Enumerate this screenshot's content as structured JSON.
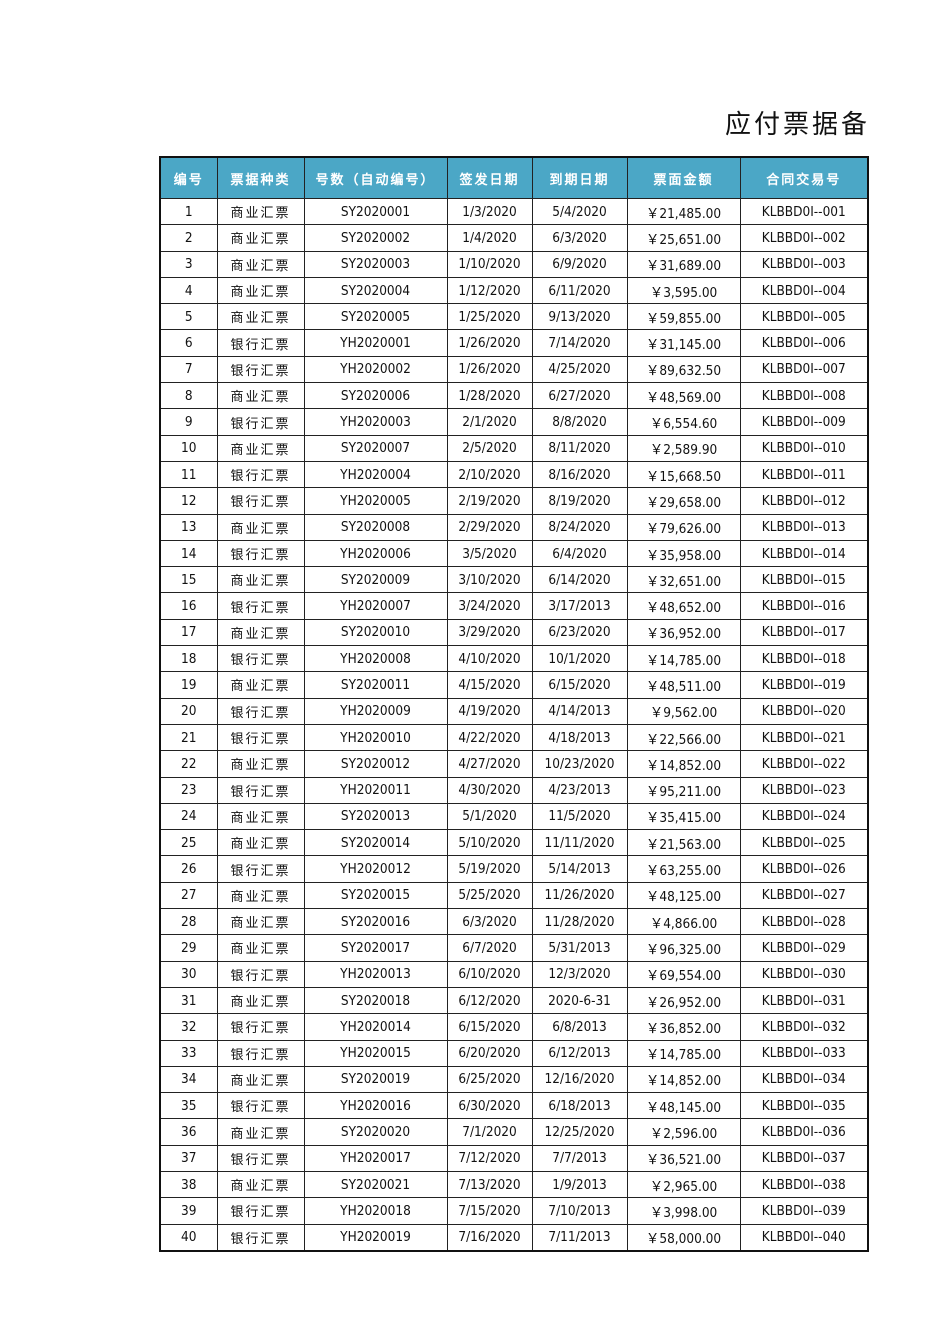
{
  "document": {
    "title": "应付票据备"
  },
  "table": {
    "header_color": "#4ba7c6",
    "columns": [
      "编号",
      "票据种类",
      "号数（自动编号）",
      "签发日期",
      "到期日期",
      "票面金额",
      "合同交易号"
    ],
    "rows": [
      [
        "1",
        "商业汇票",
        "SY2020001",
        "1/3/2020",
        "5/4/2020",
        "￥21,485.00",
        "KLBBD0I--001"
      ],
      [
        "2",
        "商业汇票",
        "SY2020002",
        "1/4/2020",
        "6/3/2020",
        "￥25,651.00",
        "KLBBD0I--002"
      ],
      [
        "3",
        "商业汇票",
        "SY2020003",
        "1/10/2020",
        "6/9/2020",
        "￥31,689.00",
        "KLBBD0I--003"
      ],
      [
        "4",
        "商业汇票",
        "SY2020004",
        "1/12/2020",
        "6/11/2020",
        "￥3,595.00",
        "KLBBD0I--004"
      ],
      [
        "5",
        "商业汇票",
        "SY2020005",
        "1/25/2020",
        "9/13/2020",
        "￥59,855.00",
        "KLBBD0I--005"
      ],
      [
        "6",
        "银行汇票",
        "YH2020001",
        "1/26/2020",
        "7/14/2020",
        "￥31,145.00",
        "KLBBD0I--006"
      ],
      [
        "7",
        "银行汇票",
        "YH2020002",
        "1/26/2020",
        "4/25/2020",
        "￥89,632.50",
        "KLBBD0I--007"
      ],
      [
        "8",
        "商业汇票",
        "SY2020006",
        "1/28/2020",
        "6/27/2020",
        "￥48,569.00",
        "KLBBD0I--008"
      ],
      [
        "9",
        "银行汇票",
        "YH2020003",
        "2/1/2020",
        "8/8/2020",
        "￥6,554.60",
        "KLBBD0I--009"
      ],
      [
        "10",
        "商业汇票",
        "SY2020007",
        "2/5/2020",
        "8/11/2020",
        "￥2,589.90",
        "KLBBD0I--010"
      ],
      [
        "11",
        "银行汇票",
        "YH2020004",
        "2/10/2020",
        "8/16/2020",
        "￥15,668.50",
        "KLBBD0I--011"
      ],
      [
        "12",
        "银行汇票",
        "YH2020005",
        "2/19/2020",
        "8/19/2020",
        "￥29,658.00",
        "KLBBD0I--012"
      ],
      [
        "13",
        "商业汇票",
        "SY2020008",
        "2/29/2020",
        "8/24/2020",
        "￥79,626.00",
        "KLBBD0I--013"
      ],
      [
        "14",
        "银行汇票",
        "YH2020006",
        "3/5/2020",
        "6/4/2020",
        "￥35,958.00",
        "KLBBD0I--014"
      ],
      [
        "15",
        "商业汇票",
        "SY2020009",
        "3/10/2020",
        "6/14/2020",
        "￥32,651.00",
        "KLBBD0I--015"
      ],
      [
        "16",
        "银行汇票",
        "YH2020007",
        "3/24/2020",
        "3/17/2013",
        "￥48,652.00",
        "KLBBD0I--016"
      ],
      [
        "17",
        "商业汇票",
        "SY2020010",
        "3/29/2020",
        "6/23/2020",
        "￥36,952.00",
        "KLBBD0I--017"
      ],
      [
        "18",
        "银行汇票",
        "YH2020008",
        "4/10/2020",
        "10/1/2020",
        "￥14,785.00",
        "KLBBD0I--018"
      ],
      [
        "19",
        "商业汇票",
        "SY2020011",
        "4/15/2020",
        "6/15/2020",
        "￥48,511.00",
        "KLBBD0I--019"
      ],
      [
        "20",
        "银行汇票",
        "YH2020009",
        "4/19/2020",
        "4/14/2013",
        "￥9,562.00",
        "KLBBD0I--020"
      ],
      [
        "21",
        "银行汇票",
        "YH2020010",
        "4/22/2020",
        "4/18/2013",
        "￥22,566.00",
        "KLBBD0I--021"
      ],
      [
        "22",
        "商业汇票",
        "SY2020012",
        "4/27/2020",
        "10/23/2020",
        "￥14,852.00",
        "KLBBD0I--022"
      ],
      [
        "23",
        "银行汇票",
        "YH2020011",
        "4/30/2020",
        "4/23/2013",
        "￥95,211.00",
        "KLBBD0I--023"
      ],
      [
        "24",
        "商业汇票",
        "SY2020013",
        "5/1/2020",
        "11/5/2020",
        "￥35,415.00",
        "KLBBD0I--024"
      ],
      [
        "25",
        "商业汇票",
        "SY2020014",
        "5/10/2020",
        "11/11/2020",
        "￥21,563.00",
        "KLBBD0I--025"
      ],
      [
        "26",
        "银行汇票",
        "YH2020012",
        "5/19/2020",
        "5/14/2013",
        "￥63,255.00",
        "KLBBD0I--026"
      ],
      [
        "27",
        "商业汇票",
        "SY2020015",
        "5/25/2020",
        "11/26/2020",
        "￥48,125.00",
        "KLBBD0I--027"
      ],
      [
        "28",
        "商业汇票",
        "SY2020016",
        "6/3/2020",
        "11/28/2020",
        "￥4,866.00",
        "KLBBD0I--028"
      ],
      [
        "29",
        "商业汇票",
        "SY2020017",
        "6/7/2020",
        "5/31/2013",
        "￥96,325.00",
        "KLBBD0I--029"
      ],
      [
        "30",
        "银行汇票",
        "YH2020013",
        "6/10/2020",
        "12/3/2020",
        "￥69,554.00",
        "KLBBD0I--030"
      ],
      [
        "31",
        "商业汇票",
        "SY2020018",
        "6/12/2020",
        "2020-6-31",
        "￥26,952.00",
        "KLBBD0I--031"
      ],
      [
        "32",
        "银行汇票",
        "YH2020014",
        "6/15/2020",
        "6/8/2013",
        "￥36,852.00",
        "KLBBD0I--032"
      ],
      [
        "33",
        "银行汇票",
        "YH2020015",
        "6/20/2020",
        "6/12/2013",
        "￥14,785.00",
        "KLBBD0I--033"
      ],
      [
        "34",
        "商业汇票",
        "SY2020019",
        "6/25/2020",
        "12/16/2020",
        "￥14,852.00",
        "KLBBD0I--034"
      ],
      [
        "35",
        "银行汇票",
        "YH2020016",
        "6/30/2020",
        "6/18/2013",
        "￥48,145.00",
        "KLBBD0I--035"
      ],
      [
        "36",
        "商业汇票",
        "SY2020020",
        "7/1/2020",
        "12/25/2020",
        "￥2,596.00",
        "KLBBD0I--036"
      ],
      [
        "37",
        "银行汇票",
        "YH2020017",
        "7/12/2020",
        "7/7/2013",
        "￥36,521.00",
        "KLBBD0I--037"
      ],
      [
        "38",
        "商业汇票",
        "SY2020021",
        "7/13/2020",
        "1/9/2013",
        "￥2,965.00",
        "KLBBD0I--038"
      ],
      [
        "39",
        "银行汇票",
        "YH2020018",
        "7/15/2020",
        "7/10/2013",
        "￥3,998.00",
        "KLBBD0I--039"
      ],
      [
        "40",
        "银行汇票",
        "YH2020019",
        "7/16/2020",
        "7/11/2013",
        "￥58,000.00",
        "KLBBD0I--040"
      ]
    ]
  }
}
